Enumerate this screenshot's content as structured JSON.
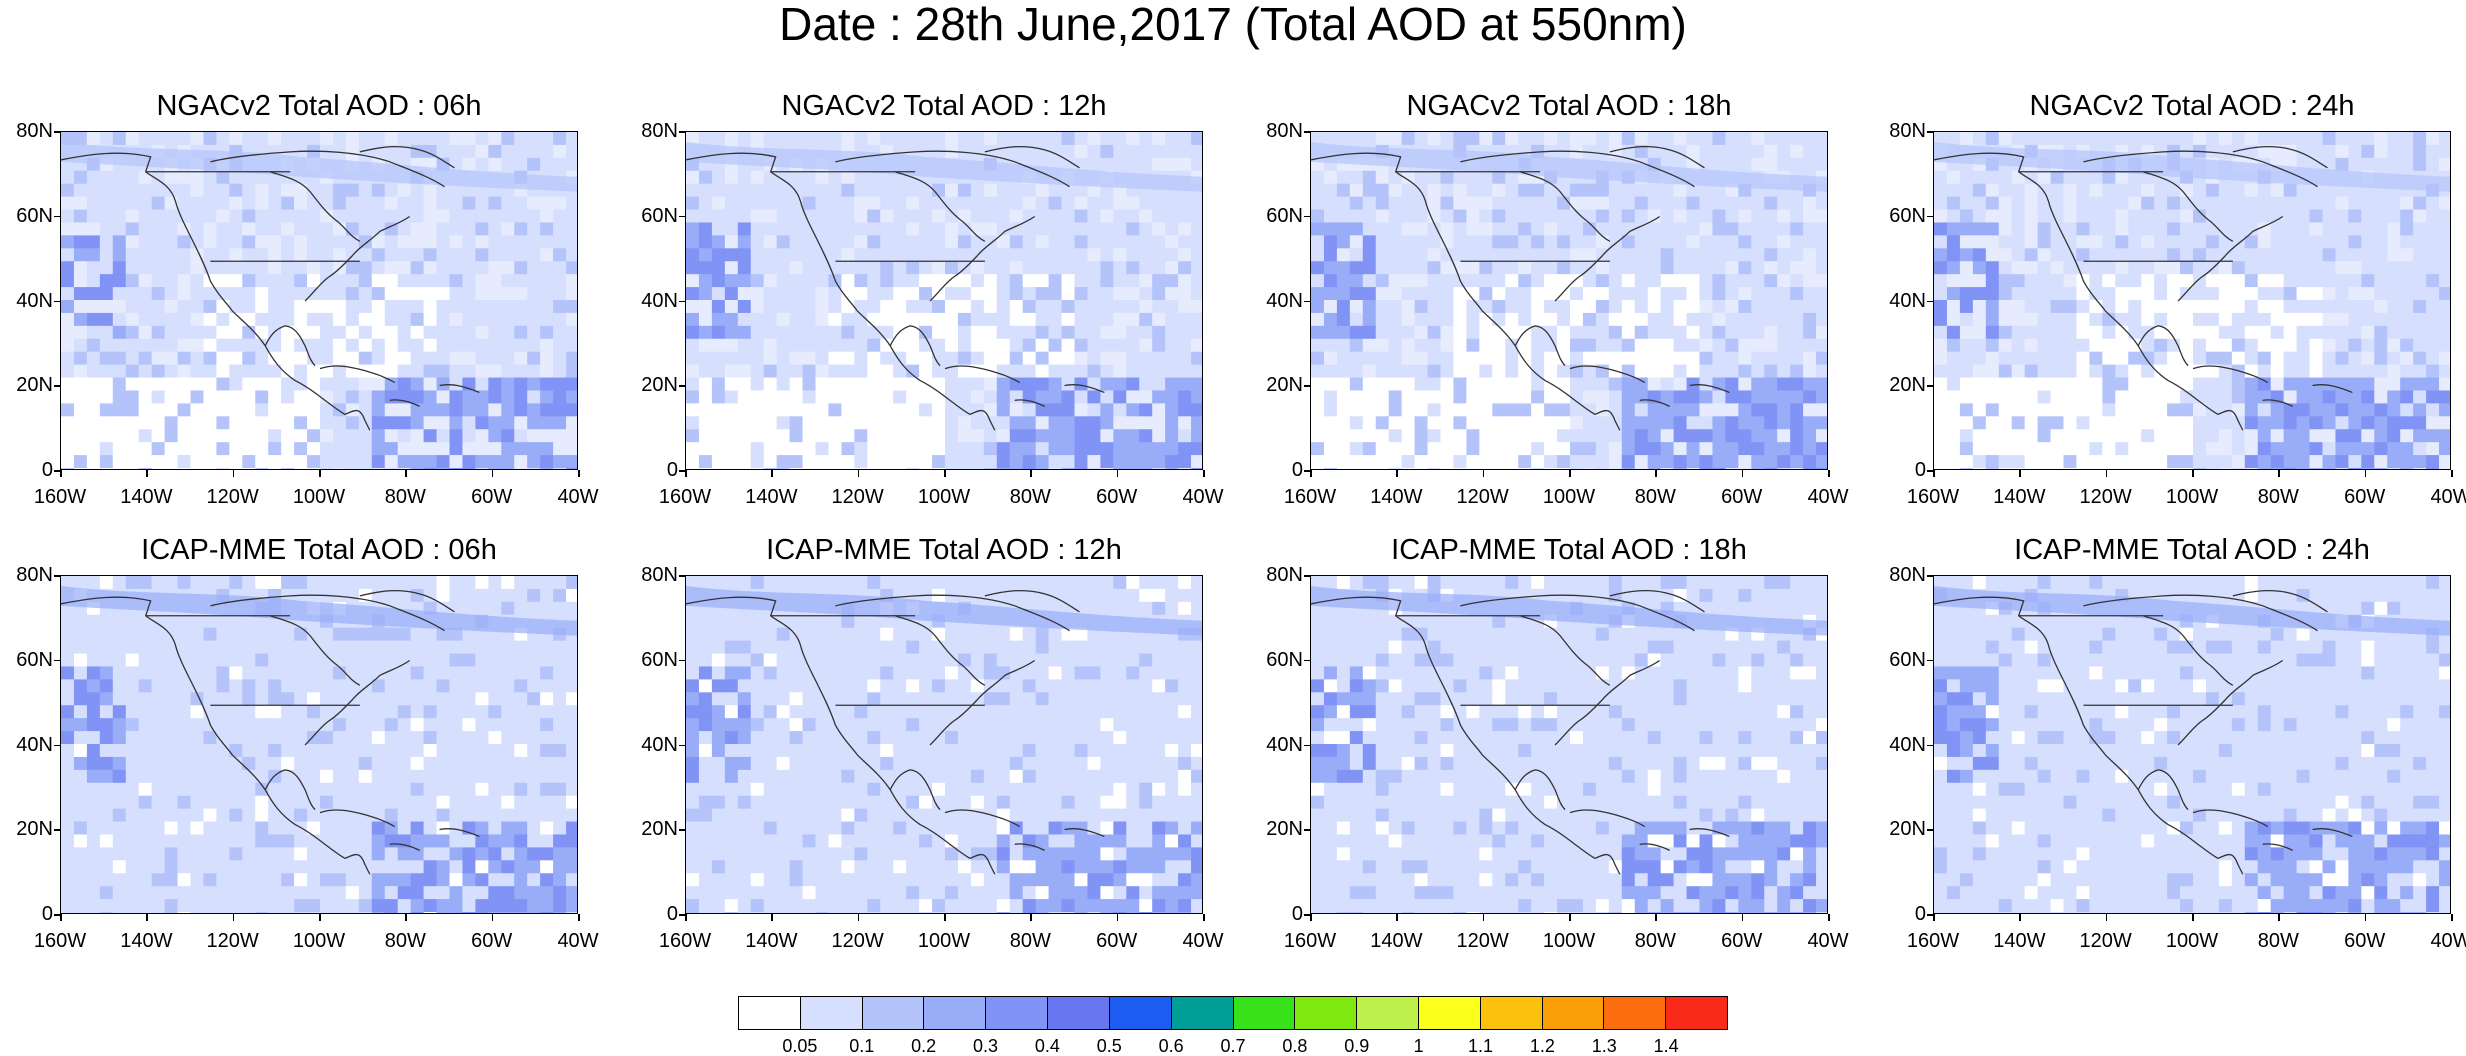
{
  "title": "Date : 28th June,2017 (Total AOD at 550nm)",
  "panels": [
    {
      "title": "NGACv2 Total AOD : 06h"
    },
    {
      "title": "NGACv2 Total AOD : 12h"
    },
    {
      "title": "NGACv2 Total AOD : 18h"
    },
    {
      "title": "NGACv2 Total AOD : 24h"
    },
    {
      "title": "ICAP-MME Total AOD : 06h"
    },
    {
      "title": "ICAP-MME Total AOD : 12h"
    },
    {
      "title": "ICAP-MME Total AOD : 18h"
    },
    {
      "title": "ICAP-MME Total AOD : 24h"
    }
  ],
  "y_axis_labels": [
    "80N",
    "60N",
    "40N",
    "20N",
    "0"
  ],
  "x_axis_labels": [
    "160W",
    "140W",
    "120W",
    "100W",
    "80W",
    "60W",
    "40W"
  ],
  "colorbar": {
    "labels": [
      "0.05",
      "0.1",
      "0.2",
      "0.3",
      "0.4",
      "0.5",
      "0.6",
      "0.7",
      "0.8",
      "0.9",
      "1",
      "1.1",
      "1.2",
      "1.3",
      "1.4"
    ],
    "colors": [
      "#ffffff",
      "#d6dffd",
      "#b4c4fb",
      "#98acf8",
      "#8193f5",
      "#6876f0",
      "#1d5cf0",
      "#009e96",
      "#38e21a",
      "#7fe80f",
      "#bdf04a",
      "#fbff1c",
      "#fcc10d",
      "#fb9f09",
      "#fb6d0f",
      "#f92a1a"
    ]
  }
}
